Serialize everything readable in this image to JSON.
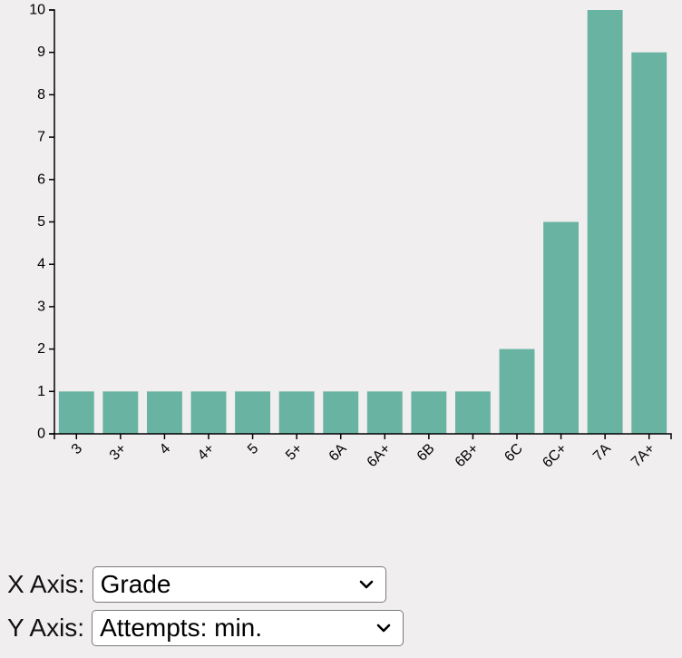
{
  "chart_data": {
    "type": "bar",
    "categories": [
      "3",
      "3+",
      "4",
      "4+",
      "5",
      "5+",
      "6A",
      "6A+",
      "6B",
      "6B+",
      "6C",
      "6C+",
      "7A",
      "7A+"
    ],
    "values": [
      1,
      1,
      1,
      1,
      1,
      1,
      1,
      1,
      1,
      1,
      2,
      5,
      10,
      9
    ],
    "yticks": [
      "0",
      "1",
      "2",
      "3",
      "4",
      "5",
      "6",
      "7",
      "8",
      "9",
      "10"
    ],
    "ylim": [
      0,
      10
    ],
    "grid": false,
    "bar_color": "#69b3a2"
  },
  "controls": {
    "x_axis": {
      "label": "X Axis:",
      "selected": "Grade"
    },
    "y_axis": {
      "label": "Y Axis:",
      "selected": "Attempts: min."
    }
  }
}
